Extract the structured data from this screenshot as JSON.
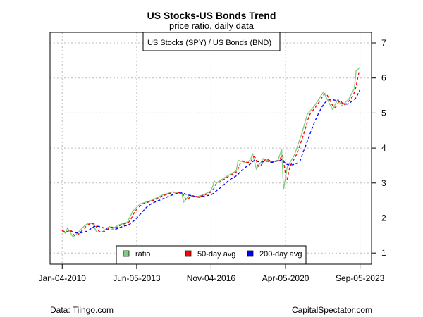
{
  "chart_data": {
    "type": "line",
    "title": "US Stocks-US Bonds Trend",
    "subtitle": "price ratio, daily data",
    "annotation": "US Stocks (SPY) / US Bonds (BND)",
    "xlabel": "",
    "ylabel": "",
    "x_ticks": [
      {
        "label": "Jan-04-2010",
        "date": "2010-01-04"
      },
      {
        "label": "Jun-05-2013",
        "date": "2013-06-05"
      },
      {
        "label": "Nov-04-2016",
        "date": "2016-11-04"
      },
      {
        "label": "Apr-05-2020",
        "date": "2020-04-05"
      },
      {
        "label": "Sep-05-2023",
        "date": "2023-09-05"
      }
    ],
    "y_ticks": [
      1,
      2,
      3,
      4,
      5,
      6,
      7
    ],
    "ylim": [
      0.8,
      7.3
    ],
    "grid": true,
    "legend_position": "bottom-center",
    "series": [
      {
        "name": "ratio",
        "color": "#7fcc7f",
        "style": "solid"
      },
      {
        "name": "50-day avg",
        "color": "#ff0000",
        "style": "dashed",
        "window_days": 50
      },
      {
        "name": "200-day avg",
        "color": "#0000ff",
        "style": "dashed",
        "window_days": 200
      }
    ],
    "ratio_points": [
      [
        "2010-01",
        1.64
      ],
      [
        "2010-03",
        1.56
      ],
      [
        "2010-04",
        1.72
      ],
      [
        "2010-07",
        1.46
      ],
      [
        "2010-09",
        1.54
      ],
      [
        "2011-01",
        1.76
      ],
      [
        "2011-03",
        1.84
      ],
      [
        "2011-06",
        1.84
      ],
      [
        "2011-08",
        1.6
      ],
      [
        "2011-11",
        1.6
      ],
      [
        "2012-03",
        1.76
      ],
      [
        "2012-05",
        1.7
      ],
      [
        "2012-08",
        1.8
      ],
      [
        "2013-01",
        1.88
      ],
      [
        "2013-04",
        2.2
      ],
      [
        "2013-08",
        2.4
      ],
      [
        "2014-02",
        2.5
      ],
      [
        "2014-08",
        2.65
      ],
      [
        "2015-02",
        2.75
      ],
      [
        "2015-07",
        2.7
      ],
      [
        "2015-08",
        2.45
      ],
      [
        "2015-11",
        2.65
      ],
      [
        "2016-03",
        2.6
      ],
      [
        "2016-07",
        2.67
      ],
      [
        "2016-11",
        2.77
      ],
      [
        "2017-01",
        3.05
      ],
      [
        "2017-02",
        3.0
      ],
      [
        "2017-07",
        3.17
      ],
      [
        "2018-01",
        3.35
      ],
      [
        "2018-02",
        3.65
      ],
      [
        "2018-07",
        3.57
      ],
      [
        "2018-09",
        3.7
      ],
      [
        "2018-10",
        3.85
      ],
      [
        "2018-12",
        3.4
      ],
      [
        "2019-04",
        3.7
      ],
      [
        "2019-08",
        3.6
      ],
      [
        "2019-12",
        3.65
      ],
      [
        "2020-02",
        3.97
      ],
      [
        "2020-03",
        2.8
      ],
      [
        "2020-05",
        3.45
      ],
      [
        "2020-09",
        3.8
      ],
      [
        "2021-01",
        4.4
      ],
      [
        "2021-04",
        4.95
      ],
      [
        "2021-08",
        5.2
      ],
      [
        "2022-01",
        5.6
      ],
      [
        "2022-03",
        5.4
      ],
      [
        "2022-06",
        5.1
      ],
      [
        "2022-09",
        5.4
      ],
      [
        "2022-11",
        5.2
      ],
      [
        "2023-03",
        5.4
      ],
      [
        "2023-06",
        5.7
      ],
      [
        "2023-07",
        6.2
      ],
      [
        "2023-09",
        6.3
      ]
    ]
  },
  "footer": {
    "source": "Data: Tiingo.com",
    "credit": "CapitalSpectator.com"
  }
}
